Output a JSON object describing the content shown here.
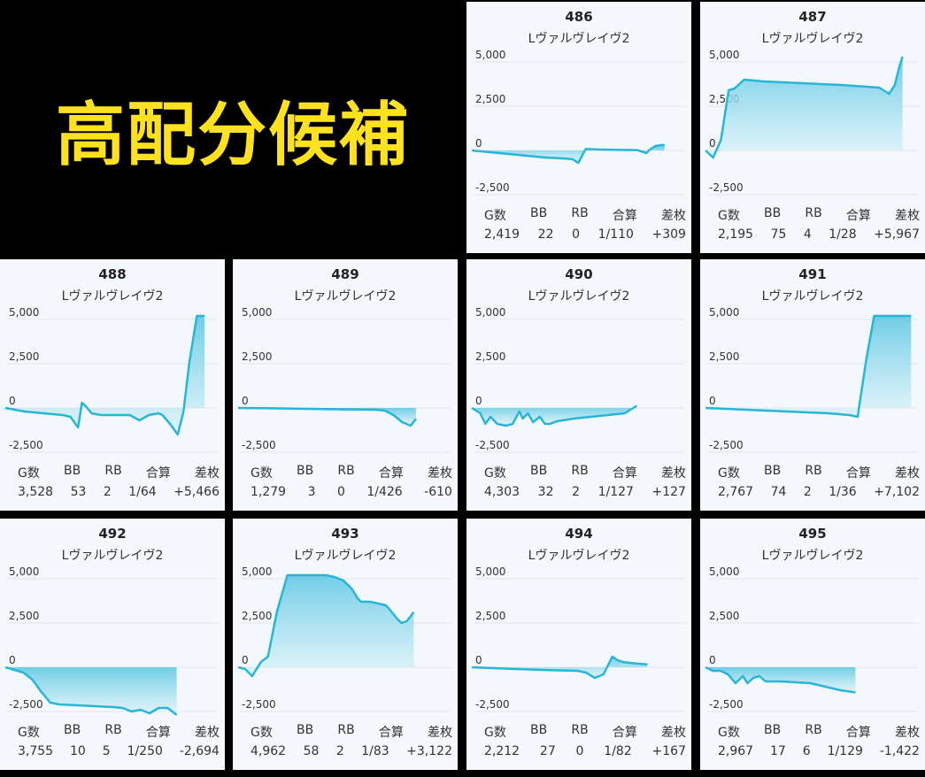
{
  "banner": "高配分候補",
  "stats_headers": [
    "G数",
    "BB",
    "RB",
    "合算",
    "差枚"
  ],
  "colors": {
    "line": "#27b6d6",
    "fill_top": "#62c9e3",
    "fill_bottom": "#d9f2fa",
    "grid": "#e2e6ec",
    "card_bg": "#f4f7fb",
    "banner_text": "#ffe21f"
  },
  "chart_data": [
    {
      "type": "area",
      "title": "486",
      "subtitle": "Lヴァルヴレイヴ2",
      "yticks": [
        5000,
        2500,
        0,
        -2500
      ],
      "ytick_labels": [
        "5,000",
        "2,500",
        "0",
        "-2,500"
      ],
      "ylim": [
        -2700,
        5200
      ],
      "x": [
        0,
        0.1,
        0.2,
        0.3,
        0.4,
        0.5,
        0.55,
        0.58,
        0.62,
        0.7,
        0.8,
        0.9,
        0.95,
        0.97,
        1.0,
        1.03,
        1.05
      ],
      "y": [
        0,
        -100,
        -200,
        -300,
        -400,
        -450,
        -500,
        -700,
        80,
        50,
        30,
        20,
        -150,
        50,
        250,
        300,
        309
      ],
      "stats": [
        "2,419",
        "22",
        "0",
        "1/110",
        "+309"
      ]
    },
    {
      "type": "area",
      "title": "487",
      "subtitle": "Lヴァルヴレイヴ2",
      "yticks": [
        5000,
        2500,
        0,
        -2500
      ],
      "ytick_labels": [
        "5,000",
        "2,500",
        "0",
        "-2,500"
      ],
      "ylim": [
        -2700,
        5200
      ],
      "x": [
        0,
        0.04,
        0.08,
        0.12,
        0.15,
        0.2,
        0.3,
        0.5,
        0.7,
        0.9,
        0.95,
        0.98,
        1.0,
        1.02
      ],
      "y": [
        0,
        -400,
        600,
        3400,
        3500,
        4000,
        3900,
        3800,
        3700,
        3550,
        3200,
        3700,
        4600,
        5300
      ],
      "stats": [
        "2,195",
        "75",
        "4",
        "1/28",
        "+5,967"
      ]
    },
    {
      "type": "area",
      "title": "488",
      "subtitle": "Lヴァルヴレイヴ2",
      "yticks": [
        5000,
        2500,
        0,
        -2500
      ],
      "ytick_labels": [
        "5,000",
        "2,500",
        "0",
        "-2,500"
      ],
      "ylim": [
        -2700,
        5200
      ],
      "x": [
        0,
        0.05,
        0.1,
        0.2,
        0.3,
        0.34,
        0.38,
        0.4,
        0.42,
        0.45,
        0.5,
        0.55,
        0.6,
        0.65,
        0.7,
        0.75,
        0.8,
        0.82,
        0.86,
        0.9,
        0.93,
        0.96,
        1.0,
        1.04
      ],
      "y": [
        0,
        -100,
        -200,
        -300,
        -400,
        -500,
        -1100,
        300,
        100,
        -300,
        -400,
        -400,
        -400,
        -400,
        -700,
        -400,
        -300,
        -400,
        -900,
        -1500,
        -200,
        2500,
        5200,
        5200
      ],
      "stats": [
        "3,528",
        "53",
        "2",
        "1/64",
        "+5,466"
      ]
    },
    {
      "type": "area",
      "title": "489",
      "subtitle": "Lヴァルヴレイヴ2",
      "yticks": [
        5000,
        2500,
        0,
        -2500
      ],
      "ytick_labels": [
        "5,000",
        "2,500",
        "0",
        "-2,500"
      ],
      "ylim": [
        -2700,
        5200
      ],
      "x": [
        0,
        0.2,
        0.4,
        0.6,
        0.8,
        0.85,
        0.9,
        0.95,
        1.0,
        1.03
      ],
      "y": [
        0,
        -20,
        -50,
        -80,
        -100,
        -150,
        -400,
        -800,
        -1000,
        -610
      ],
      "stats": [
        "1,279",
        "3",
        "0",
        "1/426",
        "-610"
      ]
    },
    {
      "type": "area",
      "title": "490",
      "subtitle": "Lヴァルヴレイヴ2",
      "yticks": [
        5000,
        2500,
        0,
        -2500
      ],
      "ytick_labels": [
        "5,000",
        "2,500",
        "0",
        "-2,500"
      ],
      "ylim": [
        -2700,
        5200
      ],
      "x": [
        0,
        0.05,
        0.08,
        0.11,
        0.15,
        0.2,
        0.24,
        0.28,
        0.3,
        0.33,
        0.36,
        0.4,
        0.43,
        0.46,
        0.5,
        0.6,
        0.7,
        0.8,
        0.9,
        0.97
      ],
      "y": [
        0,
        -300,
        -900,
        -500,
        -900,
        -1000,
        -900,
        -200,
        -600,
        -300,
        -800,
        -500,
        -900,
        -900,
        -750,
        -600,
        -500,
        -400,
        -300,
        127
      ],
      "stats": [
        "4,303",
        "32",
        "2",
        "1/127",
        "+127"
      ]
    },
    {
      "type": "area",
      "title": "491",
      "subtitle": "Lヴァルヴレイヴ2",
      "yticks": [
        5000,
        2500,
        0,
        -2500
      ],
      "ytick_labels": [
        "5,000",
        "2,500",
        "0",
        "-2,500"
      ],
      "ylim": [
        -2700,
        5200
      ],
      "x": [
        0,
        0.2,
        0.4,
        0.6,
        0.7,
        0.74,
        0.78,
        0.82,
        0.85,
        0.9,
        0.95,
        1.0
      ],
      "y": [
        0,
        -100,
        -200,
        -300,
        -400,
        -500,
        2600,
        5200,
        5200,
        5200,
        5200,
        5200
      ],
      "stats": [
        "2,767",
        "74",
        "2",
        "1/36",
        "+7,102"
      ]
    },
    {
      "type": "area",
      "title": "492",
      "subtitle": "Lヴァルヴレイヴ2",
      "yticks": [
        5000,
        2500,
        0,
        -2500
      ],
      "ytick_labels": [
        "5,000",
        "2,500",
        "0",
        "-2,500"
      ],
      "ylim": [
        -2700,
        5200
      ],
      "x": [
        0,
        0.1,
        0.15,
        0.2,
        0.25,
        0.3,
        0.4,
        0.5,
        0.6,
        0.65,
        0.7,
        0.75,
        0.8,
        0.85,
        0.9,
        0.95
      ],
      "y": [
        0,
        -300,
        -700,
        -1400,
        -2000,
        -2100,
        -2150,
        -2200,
        -2250,
        -2300,
        -2500,
        -2400,
        -2600,
        -2300,
        -2300,
        -2694
      ],
      "stats": [
        "3,755",
        "10",
        "5",
        "1/250",
        "-2,694"
      ]
    },
    {
      "type": "area",
      "title": "493",
      "subtitle": "Lヴァルヴレイヴ2",
      "yticks": [
        5000,
        2500,
        0,
        -2500
      ],
      "ytick_labels": [
        "5,000",
        "2,500",
        "0",
        "-2,500"
      ],
      "ylim": [
        -2700,
        5200
      ],
      "x": [
        0,
        0.04,
        0.08,
        0.13,
        0.17,
        0.22,
        0.28,
        0.32,
        0.4,
        0.5,
        0.55,
        0.6,
        0.65,
        0.68,
        0.7,
        0.75,
        0.8,
        0.84,
        0.86,
        0.9,
        0.93,
        0.96,
        1.0
      ],
      "y": [
        0,
        -100,
        -500,
        300,
        600,
        3100,
        5200,
        5200,
        5200,
        5200,
        5100,
        4900,
        4400,
        3900,
        3700,
        3700,
        3600,
        3500,
        3300,
        2800,
        2500,
        2600,
        3122
      ],
      "stats": [
        "4,962",
        "58",
        "2",
        "1/83",
        "+3,122"
      ]
    },
    {
      "type": "area",
      "title": "494",
      "subtitle": "Lヴァルヴレイヴ2",
      "yticks": [
        5000,
        2500,
        0,
        -2500
      ],
      "ytick_labels": [
        "5,000",
        "2,500",
        "0",
        "-2,500"
      ],
      "ylim": [
        -2700,
        5200
      ],
      "x": [
        0,
        0.2,
        0.4,
        0.6,
        0.65,
        0.7,
        0.75,
        0.8,
        0.83,
        0.86,
        0.9,
        0.95,
        1.0
      ],
      "y": [
        0,
        -80,
        -150,
        -200,
        -300,
        -600,
        -400,
        600,
        400,
        300,
        250,
        200,
        167
      ],
      "stats": [
        "2,212",
        "27",
        "0",
        "1/82",
        "+167"
      ]
    },
    {
      "type": "area",
      "title": "495",
      "subtitle": "Lヴァルヴレイヴ2",
      "yticks": [
        5000,
        2500,
        0,
        -2500
      ],
      "ytick_labels": [
        "5,000",
        "2,500",
        "0",
        "-2,500"
      ],
      "ylim": [
        -2700,
        5200
      ],
      "x": [
        0,
        0.05,
        0.1,
        0.15,
        0.2,
        0.25,
        0.28,
        0.32,
        0.36,
        0.4,
        0.5,
        0.6,
        0.7,
        0.8,
        0.9,
        1.0
      ],
      "y": [
        0,
        -200,
        -200,
        -400,
        -900,
        -500,
        -900,
        -600,
        -500,
        -800,
        -800,
        -850,
        -900,
        -1100,
        -1300,
        -1422
      ],
      "stats": [
        "2,967",
        "17",
        "6",
        "1/129",
        "-1,422"
      ]
    }
  ]
}
